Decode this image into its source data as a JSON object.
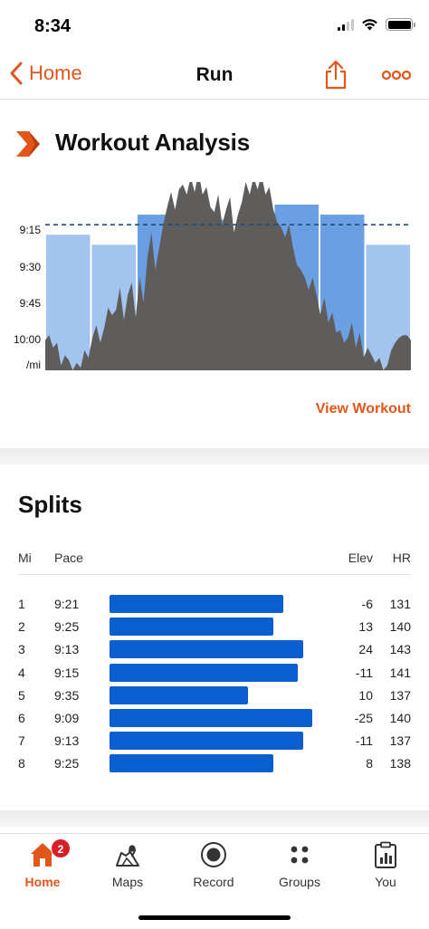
{
  "status_bar": {
    "time": "8:34"
  },
  "nav": {
    "back_label": "Home",
    "title": "Run"
  },
  "workout_analysis": {
    "title": "Workout Analysis",
    "view_workout_label": "View Workout",
    "colors": {
      "accent": "#e2561a",
      "split_bar": "#a3c4ef",
      "split_bar_fast": "#6a9fe3",
      "pace_area": "#5f5d5b",
      "target_line": "#1f4e79"
    }
  },
  "chart_data": {
    "type": "area",
    "title": "",
    "xlabel": "",
    "ylabel": "/mi",
    "y_tick_labels": [
      "9:15",
      "9:30",
      "9:45",
      "10:00",
      "/mi"
    ],
    "y_axis": "pace (min/mi), inverted — faster at top",
    "ylim_seconds_per_mile": [
      615,
      540
    ],
    "series": [
      {
        "kind": "bars",
        "categories": [
          "1",
          "2",
          "3",
          "4",
          "5",
          "6",
          "7",
          "8"
        ],
        "values_seconds_per_mile": [
          561,
          565,
          553,
          555,
          575,
          549,
          553,
          565
        ]
      },
      {
        "kind": "area",
        "values_seconds_per_mile": [
          603,
          601,
          606,
          604,
          613,
          609,
          611,
          615,
          612,
          614,
          607,
          610,
          602,
          597,
          604,
          598,
          590,
          593,
          591,
          582,
          595,
          585,
          580,
          594,
          578,
          588,
          570,
          560,
          575,
          566,
          557,
          550,
          544,
          551,
          543,
          541,
          545,
          538,
          544,
          536,
          545,
          542,
          550,
          552,
          545,
          557,
          551,
          546,
          560,
          553,
          548,
          540,
          545,
          538,
          543,
          537,
          545,
          542,
          551,
          556,
          558,
          562,
          557,
          566,
          573,
          575,
          578,
          583,
          578,
          585,
          593,
          586,
          596,
          592,
          600,
          599,
          604,
          602,
          596,
          606,
          600,
          610,
          606,
          609,
          612,
          610,
          615,
          613,
          607,
          604,
          602,
          601,
          601,
          603
        ]
      },
      {
        "kind": "target_line",
        "value_seconds_per_mile": 557
      }
    ]
  },
  "splits": {
    "title": "Splits",
    "headers": {
      "mi": "Mi",
      "pace": "Pace",
      "elev": "Elev",
      "hr": "HR"
    },
    "rows": [
      {
        "mi": "1",
        "pace": "9:21",
        "elev": "-6",
        "hr": "131",
        "bar_fraction": 0.857
      },
      {
        "mi": "2",
        "pace": "9:25",
        "elev": "13",
        "hr": "140",
        "bar_fraction": 0.806
      },
      {
        "mi": "3",
        "pace": "9:13",
        "elev": "24",
        "hr": "143",
        "bar_fraction": 0.955
      },
      {
        "mi": "4",
        "pace": "9:15",
        "elev": "-11",
        "hr": "141",
        "bar_fraction": 0.928
      },
      {
        "mi": "5",
        "pace": "9:35",
        "elev": "10",
        "hr": "137",
        "bar_fraction": 0.685
      },
      {
        "mi": "6",
        "pace": "9:09",
        "elev": "-25",
        "hr": "140",
        "bar_fraction": 1.0
      },
      {
        "mi": "7",
        "pace": "9:13",
        "elev": "-11",
        "hr": "137",
        "bar_fraction": 0.955
      },
      {
        "mi": "8",
        "pace": "9:25",
        "elev": "8",
        "hr": "138",
        "bar_fraction": 0.806
      }
    ]
  },
  "tab_bar": {
    "tabs": [
      {
        "label": "Home",
        "icon": "home-icon",
        "active": true,
        "badge": "2"
      },
      {
        "label": "Maps",
        "icon": "map-icon"
      },
      {
        "label": "Record",
        "icon": "record-icon"
      },
      {
        "label": "Groups",
        "icon": "groups-icon"
      },
      {
        "label": "You",
        "icon": "clipboard-icon"
      }
    ]
  }
}
